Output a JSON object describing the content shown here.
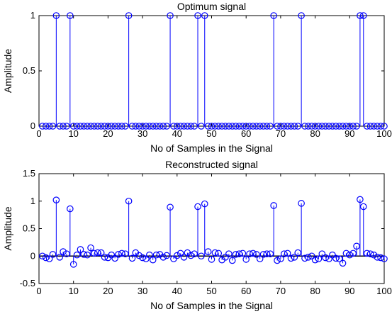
{
  "chart_data": [
    {
      "type": "stem",
      "title": "Optimum signal",
      "xlabel": "No of Samples in the Signal",
      "ylabel": "Amplitude",
      "xlim": [
        0,
        100
      ],
      "ylim": [
        0,
        1
      ],
      "xticks": [
        0,
        10,
        20,
        30,
        40,
        50,
        60,
        70,
        80,
        90,
        100
      ],
      "yticks": [
        0,
        0.5,
        1
      ],
      "ytick_labels": [
        "0",
        "0.5",
        "1"
      ],
      "color": "#0000ff",
      "x_start": 1,
      "values": [
        0,
        0,
        0,
        0,
        1,
        0,
        0,
        0,
        1,
        0,
        0,
        0,
        0,
        0,
        0,
        0,
        0,
        0,
        0,
        0,
        0,
        0,
        0,
        0,
        0,
        1,
        0,
        0,
        0,
        0,
        0,
        0,
        0,
        0,
        0,
        0,
        0,
        1,
        0,
        0,
        0,
        0,
        0,
        0,
        0,
        1,
        0,
        1,
        0,
        0,
        0,
        0,
        0,
        0,
        0,
        0,
        0,
        0,
        0,
        0,
        0,
        0,
        0,
        0,
        0,
        0,
        0,
        1,
        0,
        0,
        0,
        0,
        0,
        0,
        0,
        1,
        0,
        0,
        0,
        0,
        0,
        0,
        0,
        0,
        0,
        0,
        0,
        0,
        0,
        0,
        0,
        0,
        1,
        1,
        0,
        0,
        0,
        0,
        0,
        0
      ]
    },
    {
      "type": "stem",
      "title": "Reconstructed signal",
      "xlabel": "No of Samples in the Signal",
      "ylabel": "Amplitude",
      "xlim": [
        0,
        100
      ],
      "ylim": [
        -0.5,
        1.5
      ],
      "xticks": [
        0,
        10,
        20,
        30,
        40,
        50,
        60,
        70,
        80,
        90,
        100
      ],
      "yticks": [
        -0.5,
        0,
        0.5,
        1,
        1.5
      ],
      "ytick_labels": [
        "-0.5",
        "0",
        "0.5",
        "1",
        "1.5"
      ],
      "color": "#0000ff",
      "x_start": 1,
      "values": [
        0,
        -0.03,
        -0.05,
        0.03,
        1.02,
        -0.02,
        0.08,
        0.04,
        0.86,
        -0.15,
        0.02,
        0.12,
        0.03,
        0.02,
        0.15,
        0.05,
        0.06,
        0.06,
        -0.02,
        -0.03,
        0.02,
        -0.04,
        0.03,
        0.05,
        0.04,
        1.0,
        -0.04,
        0.06,
        0.01,
        -0.03,
        -0.05,
        0.02,
        -0.07,
        0.02,
        0.03,
        -0.02,
        0.01,
        0.89,
        -0.05,
        0.01,
        0.05,
        -0.02,
        0.06,
        0.01,
        0.04,
        0.9,
        0.0,
        0.95,
        0.08,
        -0.06,
        0.06,
        0.05,
        -0.07,
        -0.02,
        0.04,
        -0.08,
        0.03,
        0.04,
        0.05,
        -0.06,
        0.04,
        0.05,
        0.03,
        -0.05,
        0.03,
        0.04,
        0.04,
        0.92,
        -0.08,
        -0.05,
        0.04,
        0.05,
        -0.04,
        -0.02,
        0.06,
        0.96,
        -0.04,
        -0.02,
        0.0,
        -0.07,
        -0.05,
        0.04,
        -0.03,
        -0.05,
        0.02,
        -0.04,
        -0.05,
        -0.13,
        0.05,
        0.02,
        0.05,
        0.18,
        1.03,
        0.9,
        0.05,
        0.04,
        0.02,
        -0.02,
        -0.03,
        -0.05
      ]
    }
  ]
}
